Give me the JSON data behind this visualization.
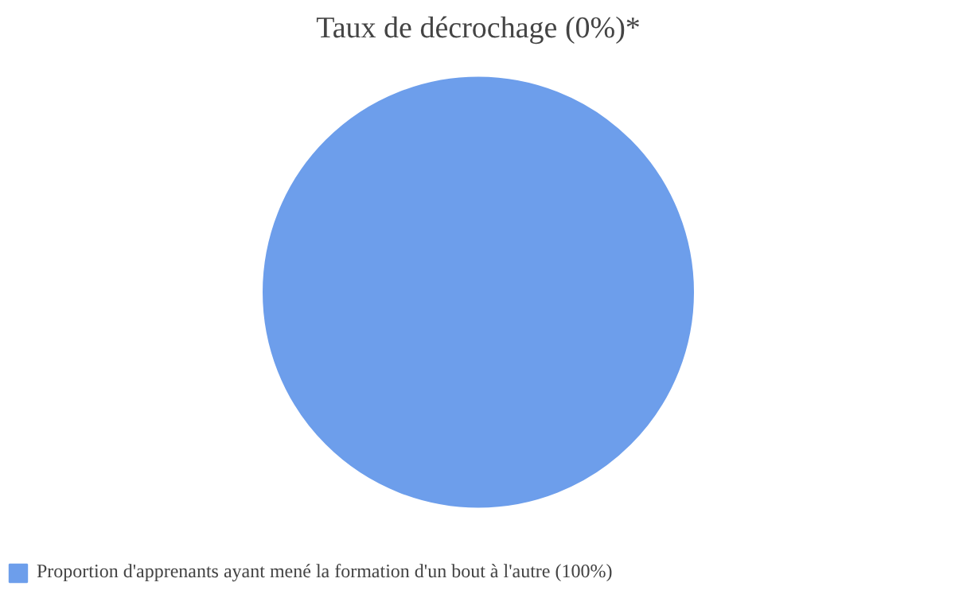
{
  "chart_data": {
    "type": "pie",
    "title": "Taux de décrochage (0%)*",
    "categories": [
      "Proportion d'apprenants ayant mené la formation d'un bout à l'autre (100%)"
    ],
    "values": [
      100
    ],
    "colors": [
      "#6d9eeb"
    ],
    "legend": "bottom left"
  }
}
